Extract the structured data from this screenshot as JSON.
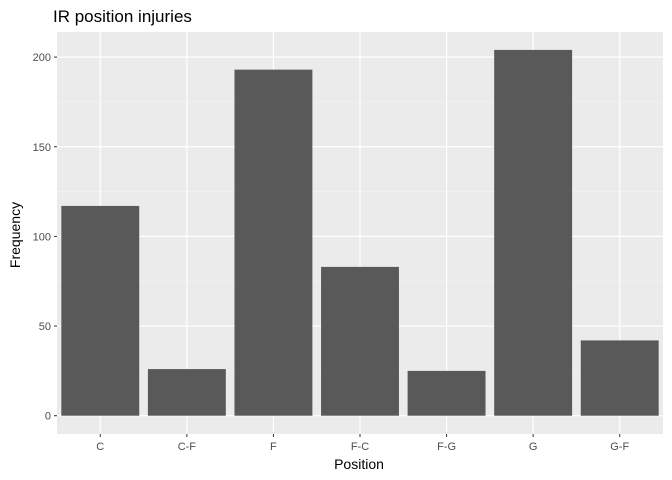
{
  "chart_data": {
    "type": "bar",
    "title": "IR position injuries",
    "xlabel": "Position",
    "ylabel": "Frequency",
    "categories": [
      "C",
      "C-F",
      "F",
      "F-C",
      "F-G",
      "G",
      "G-F"
    ],
    "values": [
      117,
      26,
      193,
      83,
      25,
      204,
      42
    ],
    "ylim": [
      0,
      214
    ],
    "yticks": [
      0,
      50,
      100,
      150,
      200
    ],
    "grid": true,
    "legend": "none",
    "colors": {
      "bar": "#595959",
      "panel": "#ebebeb",
      "grid_major": "#ffffff",
      "grid_minor": "#f5f5f5",
      "tick_text": "#4d4d4d"
    }
  }
}
